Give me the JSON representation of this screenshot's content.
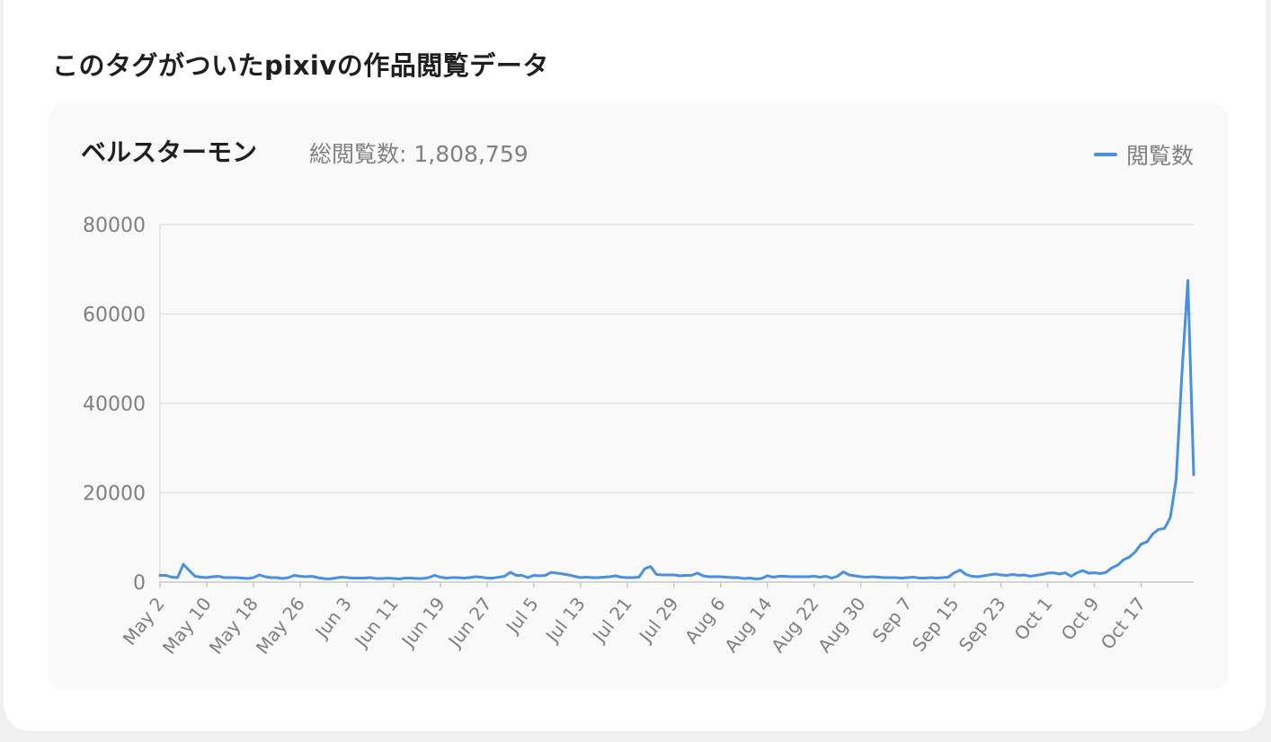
{
  "section_title": "このタグがついたpixivの作品閲覧データ",
  "panel": {
    "tag_name": "ベルスターモン",
    "total_label": "総閲覧数:",
    "total_value": "1,808,759"
  },
  "colors": {
    "line": "#4a90e2",
    "grid": "#e3e3e3",
    "axis": "#c9c9c9"
  },
  "chart_data": {
    "type": "line",
    "title": "",
    "xlabel": "",
    "ylabel": "",
    "ylim": [
      0,
      80000
    ],
    "yticks": [
      0,
      20000,
      40000,
      60000,
      80000
    ],
    "grid": true,
    "legend_position": "top-right",
    "x_tick_labels": [
      "May 2",
      "May 10",
      "May 18",
      "May 26",
      "Jun 3",
      "Jun 11",
      "Jun 19",
      "Jun 27",
      "Jul 5",
      "Jul 13",
      "Jul 21",
      "Jul 29",
      "Aug 6",
      "Aug 14",
      "Aug 22",
      "Aug 30",
      "Sep 7",
      "Sep 15",
      "Sep 23",
      "Oct 1",
      "Oct 9",
      "Oct 17"
    ],
    "series": [
      {
        "name": "閲覧数",
        "values": [
          1500,
          1500,
          1100,
          1000,
          4000,
          2600,
          1300,
          1100,
          1000,
          1200,
          1300,
          1000,
          1000,
          1000,
          900,
          800,
          1000,
          1600,
          1200,
          1000,
          1000,
          800,
          1000,
          1500,
          1300,
          1200,
          1300,
          1000,
          800,
          700,
          900,
          1100,
          1000,
          900,
          900,
          900,
          1000,
          800,
          800,
          900,
          800,
          700,
          900,
          900,
          800,
          800,
          1000,
          1500,
          1100,
          900,
          1000,
          1000,
          900,
          1000,
          1200,
          1100,
          900,
          900,
          1100,
          1300,
          2200,
          1500,
          1500,
          1000,
          1500,
          1400,
          1500,
          2200,
          2000,
          1800,
          1600,
          1300,
          1000,
          1100,
          1000,
          1000,
          1100,
          1200,
          1400,
          1100,
          1000,
          1000,
          1100,
          3000,
          3500,
          1700,
          1600,
          1600,
          1600,
          1400,
          1500,
          1500,
          2000,
          1400,
          1200,
          1200,
          1200,
          1100,
          1000,
          1000,
          800,
          900,
          700,
          800,
          1400,
          1100,
          1300,
          1300,
          1200,
          1200,
          1200,
          1200,
          1300,
          1100,
          1300,
          900,
          1300,
          2300,
          1600,
          1400,
          1200,
          1100,
          1200,
          1100,
          1000,
          1000,
          1000,
          900,
          1000,
          1100,
          900,
          900,
          1000,
          900,
          1000,
          1100,
          2100,
          2700,
          1700,
          1300,
          1200,
          1400,
          1600,
          1800,
          1600,
          1500,
          1700,
          1500,
          1600,
          1300,
          1500,
          1700,
          2000,
          2100,
          1800,
          2100,
          1300,
          2100,
          2600,
          2000,
          2100,
          1900,
          2200,
          3200,
          3800,
          5000,
          5600,
          6800,
          8500,
          9000,
          10800,
          11800,
          12000,
          14500,
          23000,
          47000,
          67500,
          24000
        ]
      }
    ]
  }
}
